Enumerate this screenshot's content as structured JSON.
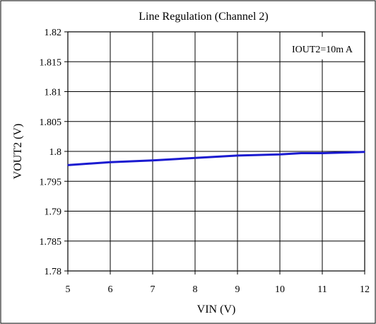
{
  "chart_data": {
    "type": "line",
    "title": "Line Regulation (Channel 2)",
    "xlabel": "VIN (V)",
    "ylabel": "VOUT2 (V)",
    "xlim": [
      5,
      12
    ],
    "ylim": [
      1.78,
      1.82
    ],
    "x_ticks": [
      "5",
      "6",
      "7",
      "8",
      "9",
      "10",
      "11",
      "12"
    ],
    "y_ticks": [
      "1.82",
      "1.815",
      "1.81",
      "1.805",
      "1.8",
      "1.795",
      "1.79",
      "1.785",
      "1.78"
    ],
    "grid": true,
    "annotation": "IOUT2=10m A",
    "series": [
      {
        "color": "#1a1ad0",
        "x": [
          5,
          6,
          7,
          8,
          9,
          10,
          10.5,
          11,
          12
        ],
        "y": [
          1.7977,
          1.7982,
          1.7985,
          1.7989,
          1.7993,
          1.7995,
          1.7997,
          1.7997,
          1.7999
        ]
      }
    ]
  }
}
